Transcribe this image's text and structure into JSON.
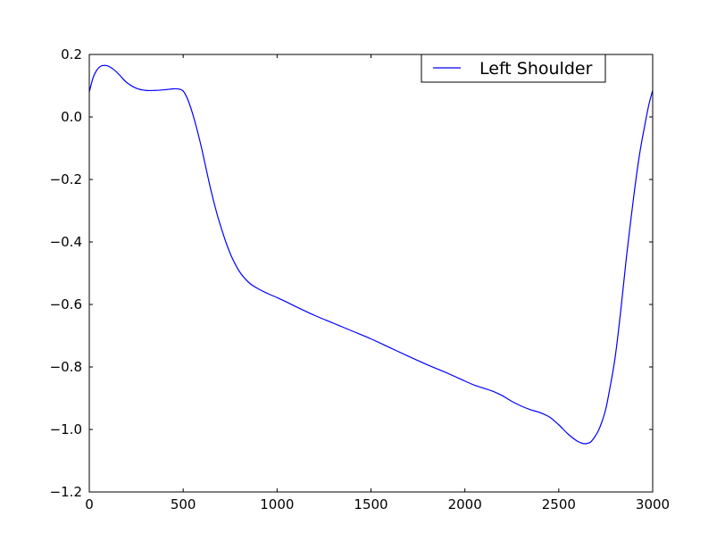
{
  "chart_data": {
    "type": "line",
    "title": "",
    "xlabel": "",
    "ylabel": "",
    "xlim": [
      0,
      3000
    ],
    "ylim": [
      -1.2,
      0.2
    ],
    "xticks": [
      0,
      500,
      1000,
      1500,
      2000,
      2500,
      3000
    ],
    "yticks": [
      -1.2,
      -1.0,
      -0.8,
      -0.6,
      -0.4,
      -0.2,
      0.0,
      0.2
    ],
    "xtick_labels": [
      "0",
      "500",
      "1000",
      "1500",
      "2000",
      "2500",
      "3000"
    ],
    "ytick_labels": [
      "−1.2",
      "−1.0",
      "−0.8",
      "−0.6",
      "−0.4",
      "−0.2",
      "0.0",
      "0.2"
    ],
    "grid": false,
    "legend": {
      "position": "top-right"
    },
    "series": [
      {
        "name": "Left Shoulder",
        "color": "#0000ff",
        "x": [
          0,
          20,
          40,
          60,
          80,
          100,
          130,
          160,
          200,
          250,
          300,
          350,
          400,
          450,
          480,
          500,
          520,
          540,
          560,
          580,
          600,
          620,
          650,
          680,
          700,
          730,
          760,
          800,
          850,
          900,
          950,
          1000,
          1050,
          1100,
          1200,
          1300,
          1400,
          1500,
          1600,
          1700,
          1800,
          1900,
          2000,
          2050,
          2100,
          2150,
          2200,
          2250,
          2300,
          2350,
          2400,
          2450,
          2500,
          2550,
          2600,
          2630,
          2650,
          2670,
          2690,
          2710,
          2730,
          2750,
          2770,
          2800,
          2830,
          2860,
          2900,
          2930,
          2960,
          2980,
          3000
        ],
        "y": [
          0.08,
          0.125,
          0.15,
          0.162,
          0.165,
          0.163,
          0.152,
          0.135,
          0.11,
          0.092,
          0.085,
          0.085,
          0.087,
          0.09,
          0.089,
          0.083,
          0.062,
          0.03,
          -0.01,
          -0.055,
          -0.105,
          -0.16,
          -0.24,
          -0.31,
          -0.35,
          -0.405,
          -0.45,
          -0.495,
          -0.53,
          -0.55,
          -0.565,
          -0.578,
          -0.592,
          -0.607,
          -0.635,
          -0.66,
          -0.685,
          -0.71,
          -0.738,
          -0.766,
          -0.793,
          -0.818,
          -0.845,
          -0.858,
          -0.868,
          -0.878,
          -0.892,
          -0.91,
          -0.925,
          -0.937,
          -0.946,
          -0.96,
          -0.985,
          -1.015,
          -1.038,
          -1.045,
          -1.045,
          -1.04,
          -1.025,
          -1.005,
          -0.975,
          -0.935,
          -0.875,
          -0.77,
          -0.62,
          -0.45,
          -0.25,
          -0.12,
          -0.02,
          0.04,
          0.085
        ]
      }
    ]
  }
}
